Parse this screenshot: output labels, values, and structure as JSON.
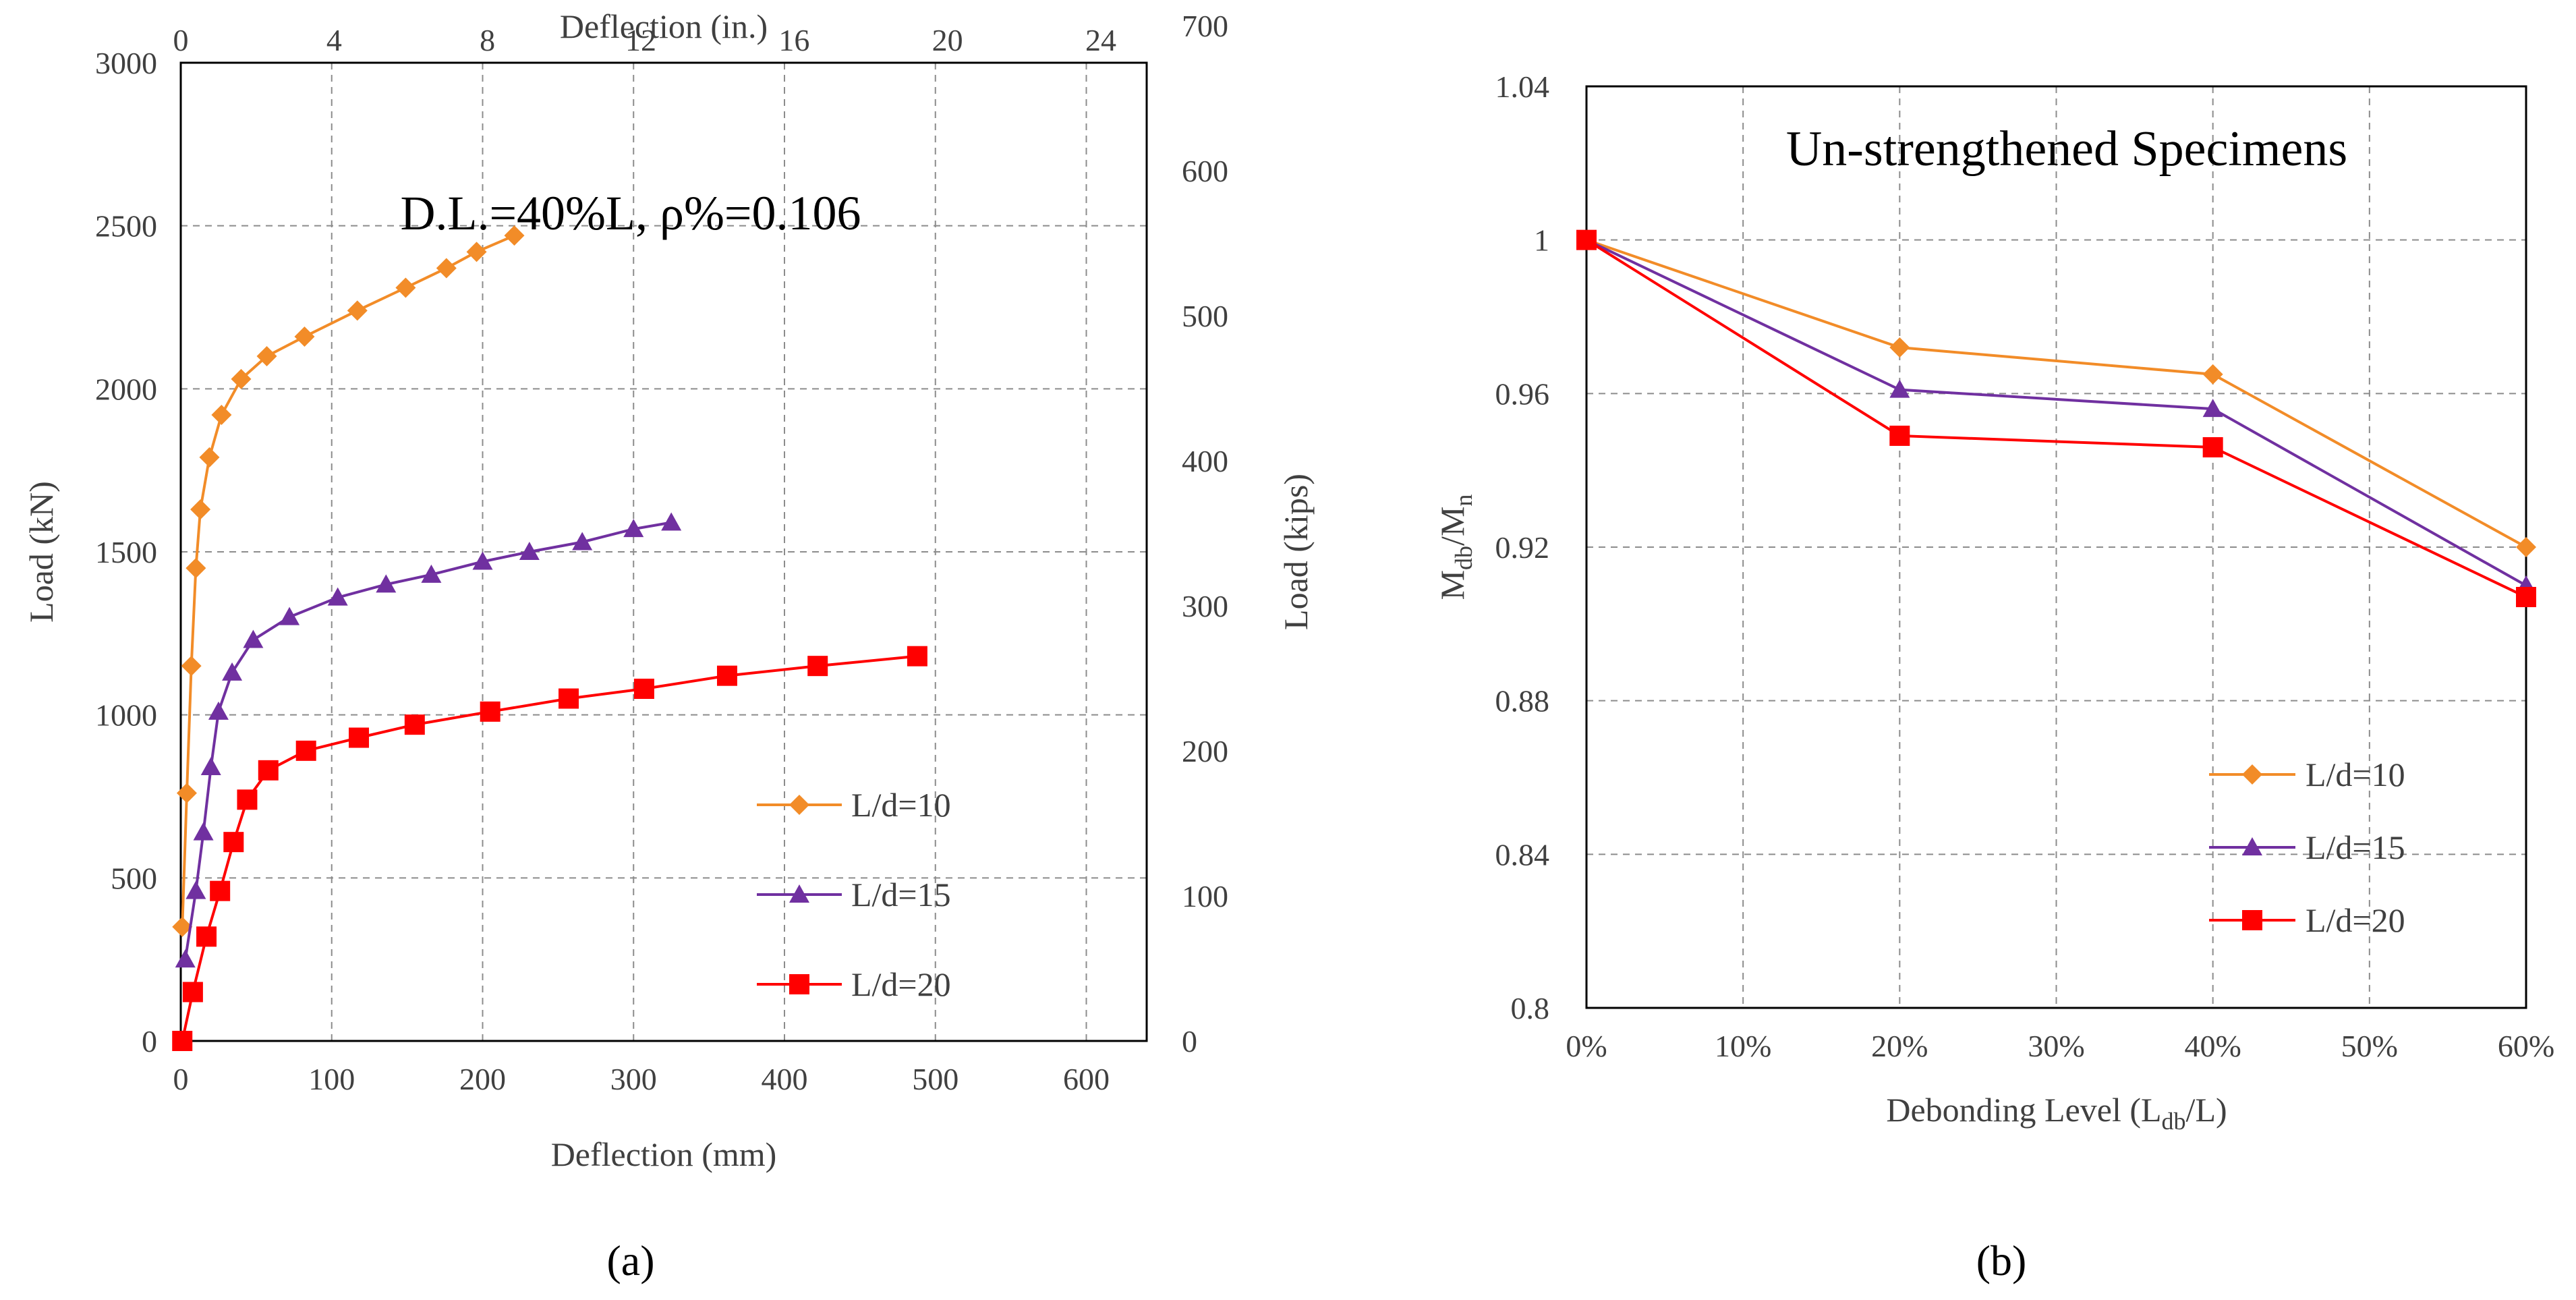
{
  "chart_data": [
    {
      "type": "scatter",
      "panel_label": "(a)",
      "annotation": "D.L.=40%L, ρ%=0.106",
      "xlabel": "Deflection (mm)",
      "ylabel": "Load (kN)",
      "x2label": "Deflection (in.)",
      "y2label": "Load (kips)",
      "xlim": [
        0,
        640
      ],
      "ylim": [
        0,
        3000
      ],
      "x2lim": [
        0,
        25.197
      ],
      "y2lim": [
        0,
        674.4
      ],
      "xticks": [
        0,
        100,
        200,
        300,
        400,
        500,
        600
      ],
      "yticks": [
        0,
        500,
        1000,
        1500,
        2000,
        2500,
        3000
      ],
      "x2ticks": [
        0,
        4,
        8,
        12,
        16,
        20,
        24
      ],
      "y2ticks": [
        0,
        100,
        200,
        300,
        400,
        500,
        600,
        700
      ],
      "grid": true,
      "legend_position": "bottom-right",
      "series": [
        {
          "name": "L/d=10",
          "color": "#F28C28",
          "marker": "diamond",
          "x": [
            1,
            4,
            7,
            10,
            13,
            19,
            27,
            40,
            57,
            82,
            117,
            149,
            176,
            196,
            221
          ],
          "y": [
            350,
            760,
            1150,
            1450,
            1630,
            1790,
            1920,
            2030,
            2100,
            2160,
            2240,
            2310,
            2370,
            2420,
            2470
          ]
        },
        {
          "name": "L/d=15",
          "color": "#7030A0",
          "marker": "triangle",
          "x": [
            3,
            10,
            15,
            20,
            25,
            34,
            48,
            72,
            104,
            136,
            166,
            200,
            231,
            266,
            300,
            325
          ],
          "y": [
            250,
            460,
            640,
            840,
            1010,
            1130,
            1230,
            1300,
            1360,
            1400,
            1430,
            1470,
            1500,
            1530,
            1570,
            1590
          ]
        },
        {
          "name": "L/d=20",
          "color": "#FF0000",
          "marker": "square",
          "x": [
            1,
            8,
            17,
            26,
            35,
            44,
            58,
            83,
            118,
            155,
            205,
            257,
            307,
            362,
            422,
            488
          ],
          "y": [
            0,
            150,
            320,
            460,
            610,
            740,
            830,
            890,
            930,
            970,
            1010,
            1050,
            1080,
            1120,
            1150,
            1180
          ]
        }
      ]
    },
    {
      "type": "line",
      "panel_label": "(b)",
      "title": "Un-strengthened Specimens",
      "xlabel": "Debonding Level (Ldb/L)",
      "ylabel": "Mdb/Mn",
      "x": [
        0,
        20,
        40,
        60
      ],
      "xticks": [
        "0%",
        "10%",
        "20%",
        "30%",
        "40%",
        "50%",
        "60%"
      ],
      "yticks": [
        "0.8",
        "0.84",
        "0.88",
        "0.92",
        "0.96",
        "1",
        "1.04"
      ],
      "xlim": [
        0,
        60
      ],
      "ylim": [
        0.8,
        1.04
      ],
      "grid": true,
      "legend_position": "bottom-right",
      "series": [
        {
          "name": "L/d=10",
          "color": "#F28C28",
          "marker": "diamond",
          "values": [
            1.0,
            0.972,
            0.965,
            0.92
          ]
        },
        {
          "name": "L/d=15",
          "color": "#7030A0",
          "marker": "triangle",
          "values": [
            1.0,
            0.961,
            0.956,
            0.91
          ]
        },
        {
          "name": "L/d=20",
          "color": "#FF0000",
          "marker": "square",
          "values": [
            1.0,
            0.949,
            0.946,
            0.907
          ]
        }
      ]
    }
  ]
}
